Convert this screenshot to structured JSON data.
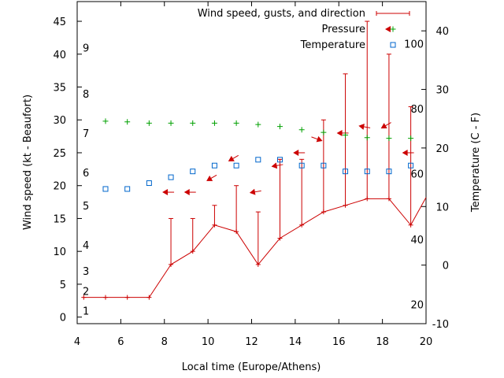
{
  "chart_data": {
    "type": "line",
    "title": "",
    "xlabel": "Local time (Europe/Athens)",
    "ylabel": "Wind speed (kt - Beaufort)",
    "y2label": "Temperature (C - F)",
    "xlim": [
      4,
      20
    ],
    "ylim": [
      -1,
      48
    ],
    "y2lim": [
      -10,
      45
    ],
    "x_ticks": [
      4,
      6,
      8,
      10,
      12,
      14,
      16,
      18,
      20
    ],
    "y_ticks": [
      0,
      5,
      10,
      15,
      20,
      25,
      30,
      35,
      40,
      45
    ],
    "y2_ticks": [
      -10,
      0,
      10,
      20,
      30,
      40
    ],
    "beaufort_labels": [
      {
        "label": "1",
        "kt": 1
      },
      {
        "label": "2",
        "kt": 4
      },
      {
        "label": "3",
        "kt": 7
      },
      {
        "label": "4",
        "kt": 11
      },
      {
        "label": "5",
        "kt": 17
      },
      {
        "label": "6",
        "kt": 22
      },
      {
        "label": "7",
        "kt": 28
      },
      {
        "label": "8",
        "kt": 34
      },
      {
        "label": "9",
        "kt": 41
      }
    ],
    "fahrenheit_labels": [
      {
        "label": "20",
        "c": -6.7
      },
      {
        "label": "40",
        "c": 4.4
      },
      {
        "label": "60",
        "c": 15.6
      },
      {
        "label": "80",
        "c": 26.7
      },
      {
        "label": "100",
        "c": 37.8
      }
    ],
    "legend_position": "top-right",
    "series": [
      {
        "name": "Wind speed, gusts, and direction",
        "color": "#cc0000",
        "x": [
          4.3,
          5.3,
          6.3,
          7.3,
          8.3,
          9.3,
          10.3,
          11.3,
          12.3,
          13.3,
          14.3,
          15.3,
          16.3,
          17.3,
          18.3,
          19.3,
          20.3
        ],
        "values": [
          3,
          3,
          3,
          3,
          8,
          10,
          14,
          13,
          8,
          12,
          14,
          16,
          17,
          18,
          18,
          14,
          20
        ],
        "gusts": [
          null,
          null,
          null,
          null,
          15,
          15,
          17,
          20,
          16,
          24,
          24,
          30,
          37,
          45,
          40,
          32,
          null
        ],
        "direction_deg": [
          null,
          null,
          null,
          null,
          90,
          90,
          60,
          60,
          80,
          80,
          90,
          290,
          90,
          100,
          60,
          90,
          null
        ]
      },
      {
        "name": "Pressure",
        "color": "#00a000",
        "x": [
          5.3,
          6.3,
          7.3,
          8.3,
          9.3,
          10.3,
          11.3,
          12.3,
          13.3,
          14.3,
          15.3,
          16.3,
          17.3,
          18.3,
          19.3
        ],
        "values": [
          29.8,
          29.7,
          29.5,
          29.5,
          29.5,
          29.5,
          29.5,
          29.3,
          29.0,
          28.5,
          28.1,
          27.7,
          27.3,
          27.2,
          27.2
        ]
      },
      {
        "name": "Temperature",
        "color": "#0066cc",
        "x": [
          5.3,
          6.3,
          7.3,
          8.3,
          9.3,
          10.3,
          11.3,
          12.3,
          13.3,
          14.3,
          15.3,
          16.3,
          17.3,
          18.3,
          19.3
        ],
        "values": [
          13,
          13,
          14,
          15,
          16,
          17,
          17,
          18,
          18,
          17,
          17,
          16,
          16,
          16,
          17
        ]
      }
    ]
  }
}
